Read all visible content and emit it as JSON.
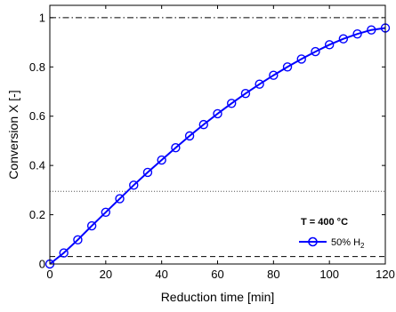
{
  "chart_data": {
    "type": "line",
    "xlabel": "Reduction time [min]",
    "ylabel": "Conversion X [-]",
    "xlim": [
      0,
      120
    ],
    "ylim": [
      0,
      1.05
    ],
    "xticks": [
      0,
      20,
      40,
      60,
      80,
      100,
      120
    ],
    "yticks": [
      0,
      0.2,
      0.4,
      0.6,
      0.8,
      1
    ],
    "xtick_labels": [
      "0",
      "20",
      "40",
      "60",
      "80",
      "100",
      "120"
    ],
    "ytick_labels": [
      "0",
      "0.2",
      "0.4",
      "0.6",
      "0.8",
      "1"
    ],
    "grid": false,
    "annotation": "T = 400 °C",
    "legend": {
      "placement": "bottom-right",
      "entries": [
        {
          "label_main": "50% H",
          "label_sub": "2"
        }
      ]
    },
    "series": [
      {
        "name": "50% H2",
        "color": "#0000ff",
        "marker": "circle",
        "x": [
          0,
          5,
          10,
          15,
          20,
          25,
          30,
          35,
          40,
          45,
          50,
          55,
          60,
          65,
          70,
          75,
          80,
          85,
          90,
          95,
          100,
          105,
          110,
          115,
          120
        ],
        "y": [
          0.0,
          0.045,
          0.098,
          0.155,
          0.21,
          0.265,
          0.32,
          0.372,
          0.422,
          0.472,
          0.52,
          0.566,
          0.61,
          0.652,
          0.692,
          0.73,
          0.766,
          0.8,
          0.832,
          0.862,
          0.89,
          0.914,
          0.934,
          0.95,
          0.958
        ]
      }
    ],
    "reference_lines": [
      {
        "y": 1.0,
        "style": "dash-dot",
        "color": "#000000"
      },
      {
        "y": 0.295,
        "style": "dotted",
        "color": "#555555"
      },
      {
        "y": 0.03,
        "style": "dashed",
        "color": "#000000"
      }
    ]
  }
}
